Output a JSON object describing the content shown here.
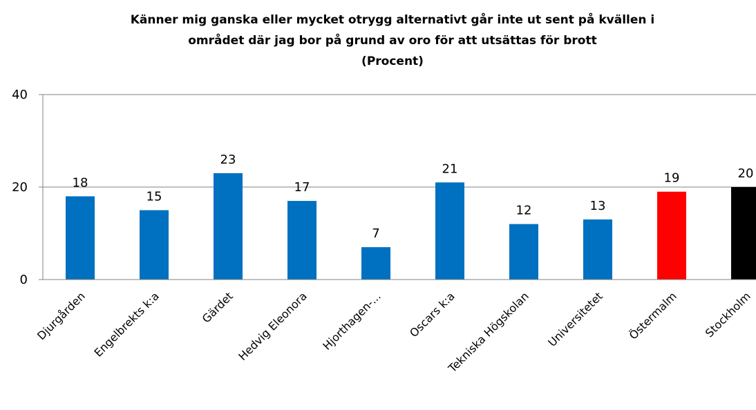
{
  "chart_data": {
    "type": "bar",
    "title": [
      "Känner mig ganska eller mycket otrygg alternativt går inte ut sent på kvällen i",
      "området där jag bor på grund av oro för att utsättas för brott",
      "(Procent)"
    ],
    "categories": [
      "Djurgården",
      "Engelbrekts k:a",
      "Gärdet",
      "Hedvig Eleonora",
      "Hjorthagen-...",
      "Oscars k:a",
      "Tekniska Högskolan",
      "Universitetet",
      "Östermalm",
      "Stockholm"
    ],
    "values": [
      18,
      15,
      23,
      17,
      7,
      21,
      12,
      13,
      19,
      20
    ],
    "colors": [
      "#0070c0",
      "#0070c0",
      "#0070c0",
      "#0070c0",
      "#0070c0",
      "#0070c0",
      "#0070c0",
      "#0070c0",
      "#ff0000",
      "#000000"
    ],
    "ylim": [
      0,
      40
    ],
    "yticks": [
      0,
      20,
      40
    ],
    "grid": true
  }
}
